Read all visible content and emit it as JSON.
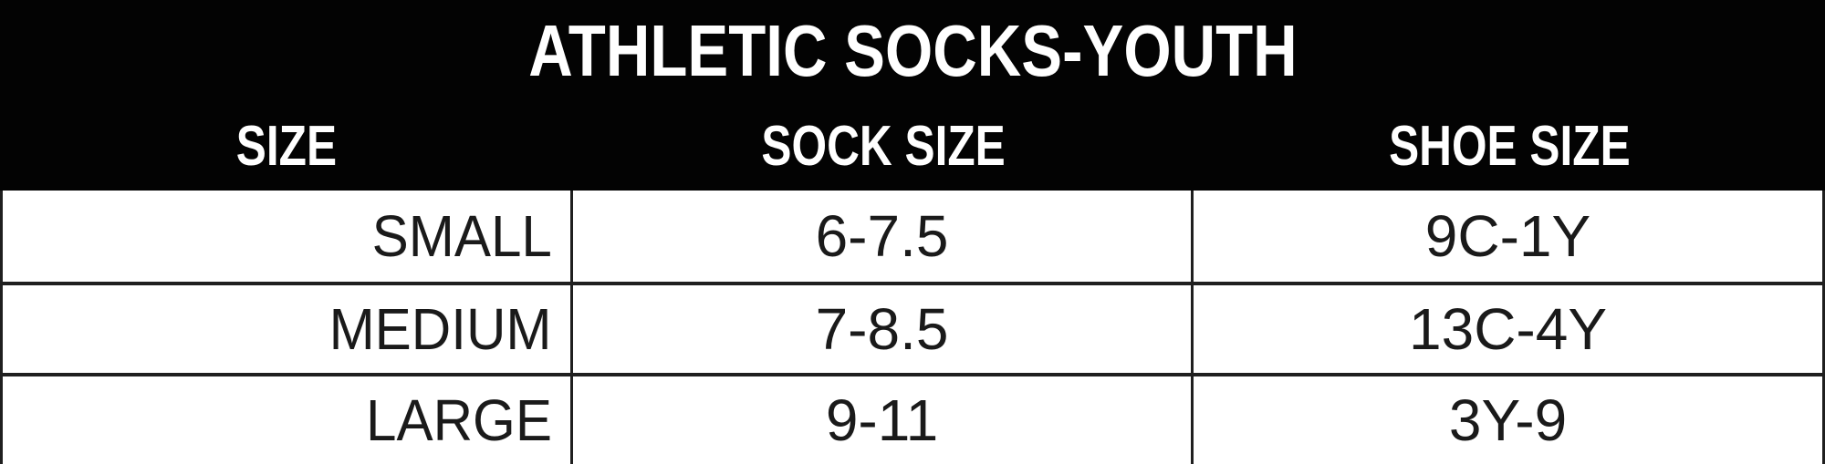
{
  "table": {
    "title": "ATHLETIC SOCKS-YOUTH",
    "columns": {
      "size": "SIZE",
      "sock_size": "SOCK SIZE",
      "shoe_size": "SHOE SIZE"
    },
    "rows": [
      {
        "size": "SMALL",
        "sock_size": "6-7.5",
        "shoe_size": "9C-1Y"
      },
      {
        "size": "MEDIUM",
        "sock_size": "7-8.5",
        "shoe_size": "13C-4Y"
      },
      {
        "size": "LARGE",
        "sock_size": "9-11",
        "shoe_size": "3Y-9"
      }
    ],
    "colors": {
      "header_bg": "#030303",
      "header_text": "#ffffff",
      "cell_bg": "#ffffff",
      "cell_text": "#1a1a1a",
      "border": "#1f1f1f"
    }
  }
}
